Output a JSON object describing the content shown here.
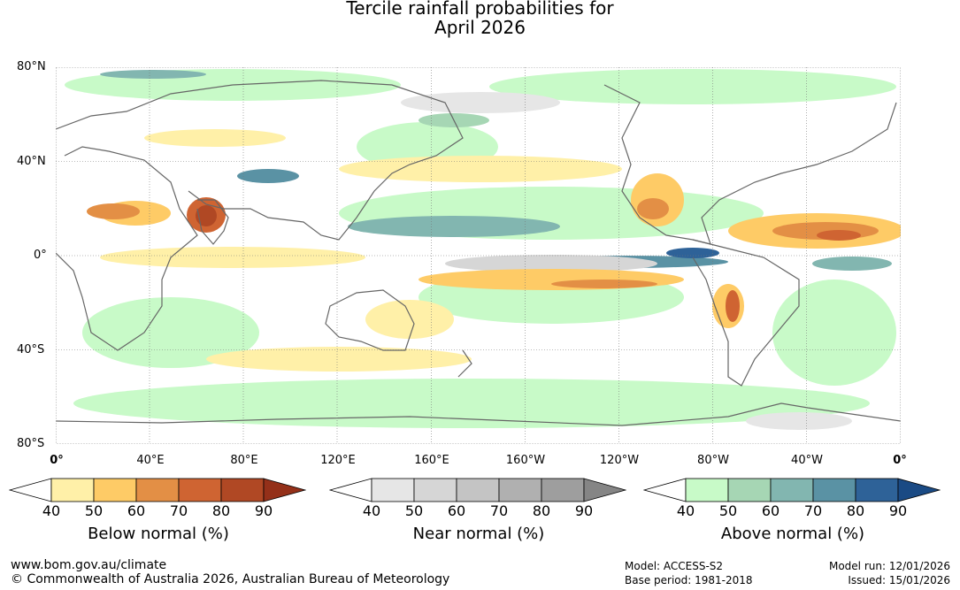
{
  "header": {
    "title_line1": "Tercile rainfall probabilities for",
    "title_line2": "April 2026"
  },
  "map": {
    "lat_labels": [
      "80°N",
      "40°N",
      "0°",
      "40°S",
      "80°S"
    ],
    "lon_labels": [
      "0°",
      "40°E",
      "80°E",
      "120°E",
      "160°E",
      "160°W",
      "120°W",
      "80°W",
      "40°W",
      "0°"
    ],
    "ocean_color": "#ffffff",
    "coast_color": "#666666"
  },
  "legends": [
    {
      "title": "Below normal (%)",
      "ticks": [
        "40",
        "50",
        "60",
        "70",
        "80",
        "90"
      ],
      "colors": [
        "#fff0a8",
        "#fecb66",
        "#e38f45",
        "#cf6432",
        "#b04824",
        "#943019"
      ]
    },
    {
      "title": "Near normal (%)",
      "ticks": [
        "40",
        "50",
        "60",
        "70",
        "80",
        "90"
      ],
      "colors": [
        "#e6e6e6",
        "#d6d6d6",
        "#c4c4c4",
        "#b0b0b0",
        "#9e9e9e",
        "#858585"
      ]
    },
    {
      "title": "Above normal (%)",
      "ticks": [
        "40",
        "50",
        "60",
        "70",
        "80",
        "90"
      ],
      "colors": [
        "#c8fac8",
        "#a6d6b4",
        "#82b6b0",
        "#5a92a4",
        "#2e6298",
        "#1a4a84"
      ]
    }
  ],
  "footer": {
    "url": "www.bom.gov.au/climate",
    "copyright": "© Commonwealth of Australia 2026, Australian Bureau of Meteorology",
    "model": "Model: ACCESS-S2",
    "base_period": "Base period: 1981-2018",
    "model_run": "Model run: 12/01/2026",
    "issued": "Issued: 15/01/2026"
  }
}
